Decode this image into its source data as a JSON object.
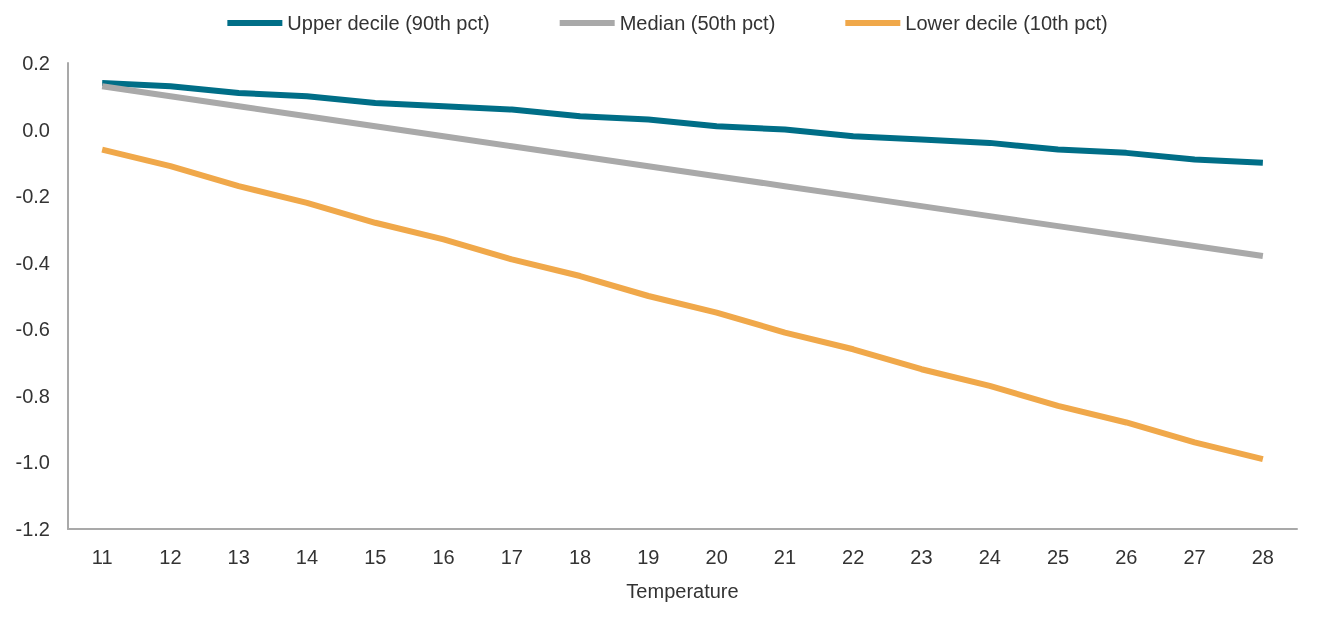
{
  "chart_data": {
    "type": "line",
    "xlabel": "Temperature",
    "categories": [
      "11",
      "12",
      "13",
      "14",
      "15",
      "16",
      "17",
      "18",
      "19",
      "20",
      "21",
      "22",
      "23",
      "24",
      "25",
      "26",
      "27",
      "28"
    ],
    "series": [
      {
        "name": "Upper decile (90th pct)",
        "color": "#006e87",
        "values": [
          0.14,
          0.13,
          0.11,
          0.1,
          0.08,
          0.07,
          0.06,
          0.04,
          0.03,
          0.01,
          0.0,
          -0.02,
          -0.03,
          -0.04,
          -0.06,
          -0.07,
          -0.09,
          -0.1
        ]
      },
      {
        "name": "Median (50th pct)",
        "color": "#a9a9a9",
        "values": [
          0.13,
          0.1,
          0.07,
          0.04,
          0.01,
          -0.02,
          -0.05,
          -0.08,
          -0.11,
          -0.14,
          -0.17,
          -0.2,
          -0.23,
          -0.26,
          -0.29,
          -0.32,
          -0.35,
          -0.38
        ]
      },
      {
        "name": "Lower decile (10th pct)",
        "color": "#f0a84a",
        "values": [
          -0.06,
          -0.11,
          -0.17,
          -0.22,
          -0.28,
          -0.33,
          -0.39,
          -0.44,
          -0.5,
          -0.55,
          -0.61,
          -0.66,
          -0.72,
          -0.77,
          -0.83,
          -0.88,
          -0.94,
          -0.99
        ]
      }
    ],
    "ylim": [
      -1.2,
      0.2
    ],
    "yticks": [
      {
        "value": -1.2,
        "label": "-1.2"
      },
      {
        "value": -1.0,
        "label": "-1.0"
      },
      {
        "value": -0.8,
        "label": "-0.8"
      },
      {
        "value": -0.6,
        "label": "-0.6"
      },
      {
        "value": -0.4,
        "label": "-0.4"
      },
      {
        "value": -0.2,
        "label": "-0.2"
      },
      {
        "value": 0,
        "label": "0.0"
      },
      {
        "value": 0.2,
        "label": "0.2"
      }
    ],
    "grid": false,
    "legend": "top",
    "marker": "none",
    "line_style": "solid"
  }
}
